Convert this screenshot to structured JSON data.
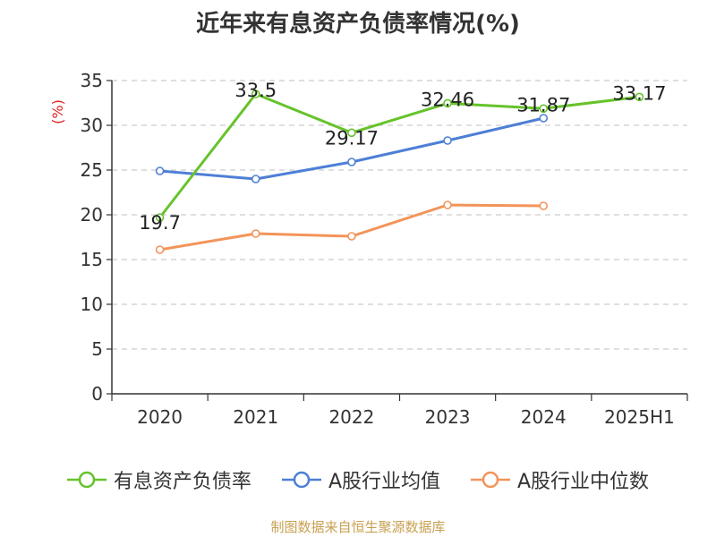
{
  "source": "制图数据来自恒生聚源数据库",
  "chart_data": {
    "type": "line",
    "title": "近年来有息资产负债率情况(%)",
    "ylabel": "(%)",
    "categories": [
      "2020",
      "2021",
      "2022",
      "2023",
      "2024",
      "2025H1"
    ],
    "ylim": [
      0,
      35
    ],
    "yticks": [
      0,
      5,
      10,
      15,
      20,
      25,
      30,
      35
    ],
    "grid": true,
    "legend_position": "bottom",
    "series": [
      {
        "name": "有息资产负债率",
        "color": "#66c32b",
        "values": [
          19.7,
          33.5,
          29.17,
          32.46,
          31.87,
          33.17
        ],
        "labels": [
          "19.7",
          "33.5",
          "29.17",
          "32.46",
          "31.87",
          "33.17"
        ]
      },
      {
        "name": "A股行业均值",
        "color": "#4e7fd6",
        "values": [
          24.9,
          24.0,
          25.9,
          28.3,
          30.8,
          null
        ]
      },
      {
        "name": "A股行业中位数",
        "color": "#f39459",
        "values": [
          16.1,
          17.9,
          17.6,
          21.1,
          21.0,
          null
        ]
      }
    ]
  }
}
